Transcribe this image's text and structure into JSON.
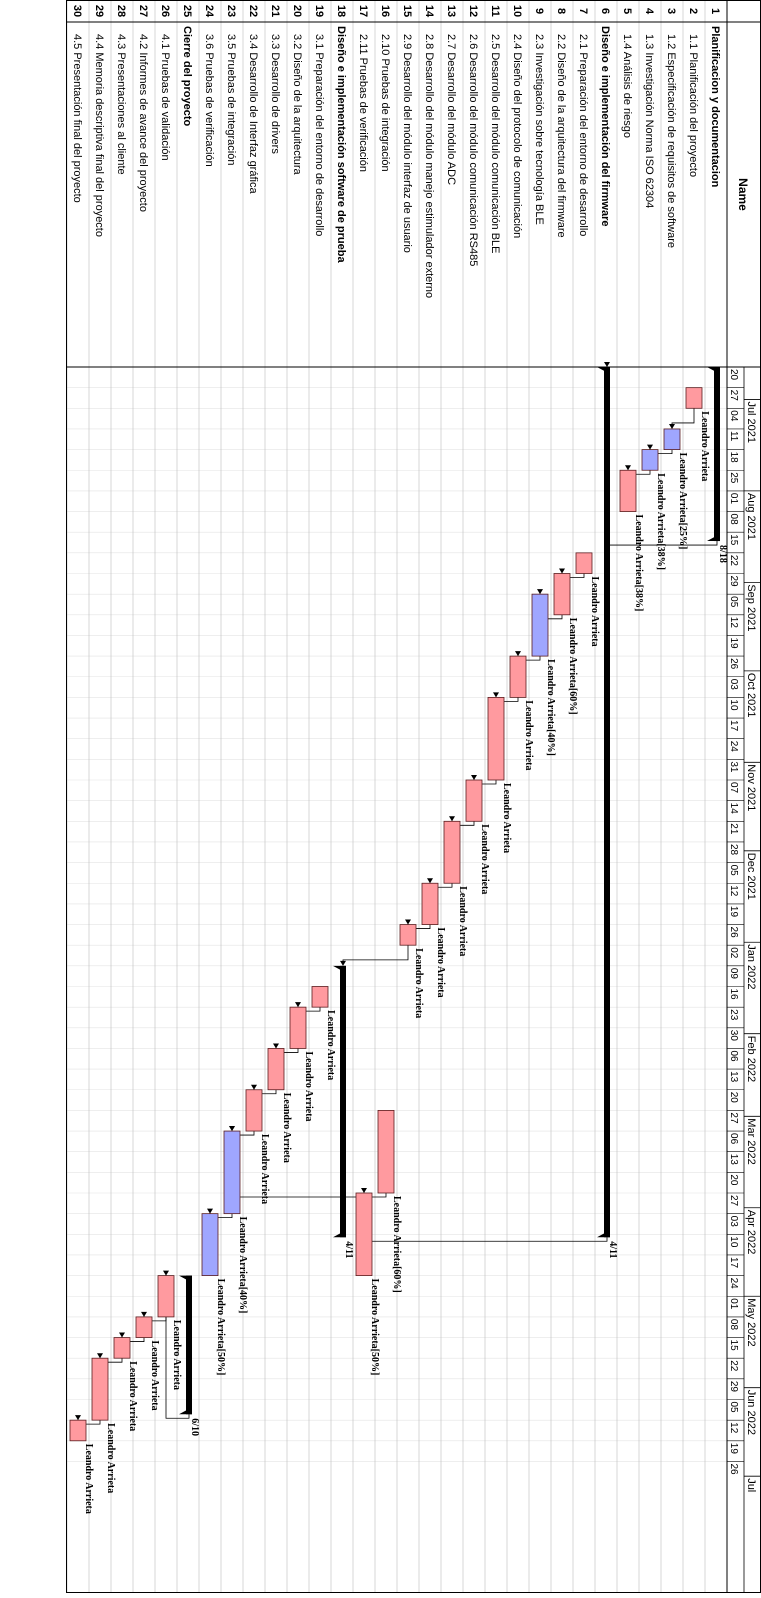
{
  "header": {
    "name_label": "Name"
  },
  "colors": {
    "bar_red": "#ff9a9f",
    "bar_blue": "#9fa6ff",
    "summary": "#000000",
    "grid": "#bdbdbd",
    "border": "#000000"
  },
  "timeline": {
    "start": "2021-06-20",
    "end": "2022-07-31",
    "months": [
      {
        "label": "Jul 2021",
        "date": "2021-07-01"
      },
      {
        "label": "Aug 2021",
        "date": "2021-08-01"
      },
      {
        "label": "Sep 2021",
        "date": "2021-09-01"
      },
      {
        "label": "Oct 2021",
        "date": "2021-10-01"
      },
      {
        "label": "Nov 2021",
        "date": "2021-11-01"
      },
      {
        "label": "Dec 2021",
        "date": "2021-12-01"
      },
      {
        "label": "Jan 2022",
        "date": "2022-01-01"
      },
      {
        "label": "Feb 2022",
        "date": "2022-02-01"
      },
      {
        "label": "Mar 2022",
        "date": "2022-03-01"
      },
      {
        "label": "Apr 2022",
        "date": "2022-04-01"
      },
      {
        "label": "May 2022",
        "date": "2022-05-01"
      },
      {
        "label": "Jun 2022",
        "date": "2022-06-01"
      },
      {
        "label": "Jul",
        "date": "2022-07-01"
      }
    ],
    "weeks": [
      "2021-06-20",
      "2021-06-27",
      "2021-07-04",
      "2021-07-11",
      "2021-07-18",
      "2021-07-25",
      "2021-08-01",
      "2021-08-08",
      "2021-08-15",
      "2021-08-22",
      "2021-08-29",
      "2021-09-05",
      "2021-09-12",
      "2021-09-19",
      "2021-09-26",
      "2021-10-03",
      "2021-10-10",
      "2021-10-17",
      "2021-10-24",
      "2021-10-31",
      "2021-11-07",
      "2021-11-14",
      "2021-11-21",
      "2021-11-28",
      "2021-12-05",
      "2021-12-12",
      "2021-12-19",
      "2021-12-26",
      "2022-01-02",
      "2022-01-09",
      "2022-01-16",
      "2022-01-23",
      "2022-01-30",
      "2022-02-06",
      "2022-02-13",
      "2022-02-20",
      "2022-02-27",
      "2022-03-06",
      "2022-03-13",
      "2022-03-20",
      "2022-03-27",
      "2022-04-03",
      "2022-04-10",
      "2022-04-17",
      "2022-04-24",
      "2022-05-01",
      "2022-05-08",
      "2022-05-15",
      "2022-05-22",
      "2022-05-29",
      "2022-06-05",
      "2022-06-12",
      "2022-06-19",
      "2022-06-26"
    ],
    "week_labels": [
      "20",
      "27",
      "04",
      "11",
      "18",
      "25",
      "01",
      "08",
      "15",
      "22",
      "29",
      "05",
      "12",
      "19",
      "26",
      "03",
      "10",
      "17",
      "24",
      "31",
      "07",
      "14",
      "21",
      "28",
      "05",
      "12",
      "19",
      "26",
      "02",
      "09",
      "16",
      "23",
      "30",
      "06",
      "13",
      "20",
      "27",
      "06",
      "13",
      "20",
      "27",
      "03",
      "10",
      "17",
      "24",
      "01",
      "08",
      "15",
      "22",
      "29",
      "05",
      "12",
      "19",
      "26"
    ]
  },
  "chart_data": {
    "type": "gantt",
    "tasks": [
      {
        "id": "1",
        "name": "Planificacion y documentacion",
        "summary": true,
        "start": "2021-06-20",
        "end": "2021-08-18",
        "label": "8/18"
      },
      {
        "id": "2",
        "name": "1.1 Planificación del proyecto",
        "start": "2021-06-27",
        "end": "2021-07-04",
        "color": "red",
        "label": "Leandro Arrieta"
      },
      {
        "id": "3",
        "name": "1.2 Especificación de requisitos de software",
        "start": "2021-07-11",
        "end": "2021-07-18",
        "color": "blue",
        "label": "Leandro Arrieta[25%]"
      },
      {
        "id": "4",
        "name": "1.3 Investigación Norma ISO 62304",
        "start": "2021-07-18",
        "end": "2021-07-25",
        "color": "blue",
        "label": "Leandro Arrieta[38%]"
      },
      {
        "id": "5",
        "name": "1.4 Análisis de riesgo",
        "start": "2021-07-25",
        "end": "2021-08-08",
        "color": "red",
        "label": "Leandro Arrieta[38%]"
      },
      {
        "id": "6",
        "name": "Diseño e implementación del firmware",
        "summary": true,
        "start": "2021-06-20",
        "end": "2022-04-11",
        "label": "4/11"
      },
      {
        "id": "7",
        "name": "2.1 Preparación del entorno de desarrollo",
        "start": "2021-08-22",
        "end": "2021-08-29",
        "color": "red",
        "label": "Leandro Arrieta"
      },
      {
        "id": "8",
        "name": "2.2 Diseño de la arquitectura del firmware",
        "start": "2021-08-29",
        "end": "2021-09-12",
        "color": "red",
        "label": "Leandro Arrieta[60%]"
      },
      {
        "id": "9",
        "name": "2.3 Investigación sobre tecnología BLE",
        "start": "2021-09-05",
        "end": "2021-09-26",
        "color": "blue",
        "label": "Leandro Arrieta[40%]"
      },
      {
        "id": "10",
        "name": "2.4 Diseño del protocolo de comunicación",
        "start": "2021-09-26",
        "end": "2021-10-10",
        "color": "red",
        "label": "Leandro Arrieta"
      },
      {
        "id": "11",
        "name": "2.5 Desarrollo del módulo comunicación BLE",
        "start": "2021-10-10",
        "end": "2021-11-07",
        "color": "red",
        "label": "Leandro Arrieta"
      },
      {
        "id": "12",
        "name": "2.6 Desarrollo del módulo comunicación RS485",
        "start": "2021-11-07",
        "end": "2021-11-21",
        "color": "red",
        "label": "Leandro Arrieta"
      },
      {
        "id": "13",
        "name": "2.7 Desarrollo del módulo ADC",
        "start": "2021-11-21",
        "end": "2021-12-12",
        "color": "red",
        "label": "Leandro Arrieta"
      },
      {
        "id": "14",
        "name": "2.8 Desarrollo del módulo manejo estimulador externo",
        "start": "2021-12-12",
        "end": "2021-12-26",
        "color": "red",
        "label": "Leandro Arrieta"
      },
      {
        "id": "15",
        "name": "2.9 Desarrollo del módulo interfaz de usuario",
        "start": "2021-12-26",
        "end": "2022-01-02",
        "color": "red",
        "label": "Leandro Arrieta"
      },
      {
        "id": "16",
        "name": "2.10 Pruebas de integración",
        "start": "2022-02-27",
        "end": "2022-03-27",
        "color": "red",
        "label": "Leandro Arrieta[60%]"
      },
      {
        "id": "17",
        "name": "2.11 Pruebas de verificación",
        "start": "2022-03-27",
        "end": "2022-04-24",
        "color": "red",
        "label": "Leandro Arrieta[50%]"
      },
      {
        "id": "18",
        "name": "Diseño e implementación software de prueba",
        "summary": true,
        "start": "2022-01-09",
        "end": "2022-04-11",
        "label": "4/11"
      },
      {
        "id": "19",
        "name": "3.1 Preparación del entorno de desarrollo",
        "start": "2022-01-16",
        "end": "2022-01-23",
        "color": "red",
        "label": "Leandro Arrieta"
      },
      {
        "id": "20",
        "name": "3.2 Diseño de la arquitectura",
        "start": "2022-01-23",
        "end": "2022-02-06",
        "color": "red",
        "label": "Leandro Arrieta"
      },
      {
        "id": "21",
        "name": "3.3 Desarrollo de drivers",
        "start": "2022-02-06",
        "end": "2022-02-20",
        "color": "red",
        "label": "Leandro Arrieta"
      },
      {
        "id": "22",
        "name": "3.4 Desarrollo de Interfaz gráfica",
        "start": "2022-02-20",
        "end": "2022-03-06",
        "color": "red",
        "label": "Leandro Arrieta"
      },
      {
        "id": "23",
        "name": "3.5 Pruebas de integración",
        "start": "2022-03-06",
        "end": "2022-04-03",
        "color": "blue",
        "label": "Leandro Arrieta[40%]"
      },
      {
        "id": "24",
        "name": "3.6 Pruebas de verificación",
        "start": "2022-04-03",
        "end": "2022-04-24",
        "color": "blue",
        "label": "Leandro Arrieta[50%]"
      },
      {
        "id": "25",
        "name": "Cierre del proyecto",
        "summary": true,
        "start": "2022-04-24",
        "end": "2022-06-10",
        "label": "6/10"
      },
      {
        "id": "26",
        "name": "4.1 Pruebas de validación",
        "start": "2022-04-24",
        "end": "2022-05-08",
        "color": "red",
        "label": "Leandro Arrieta"
      },
      {
        "id": "27",
        "name": "4.2 Informes de avance del proyecto",
        "start": "2022-05-08",
        "end": "2022-05-15",
        "color": "red",
        "label": "Leandro Arrieta"
      },
      {
        "id": "28",
        "name": "4.3 Presentaciones al cliente",
        "start": "2022-05-15",
        "end": "2022-05-22",
        "color": "red",
        "label": "Leandro Arrieta"
      },
      {
        "id": "29",
        "name": "4.4 Memoria descriptiva final del proyecto",
        "start": "2022-05-22",
        "end": "2022-06-12",
        "color": "red",
        "label": "Leandro Arrieta"
      },
      {
        "id": "30",
        "name": "4.5 Presentación final del proyecto",
        "start": "2022-06-12",
        "end": "2022-06-19",
        "color": "red",
        "label": "Leandro Arrieta"
      }
    ]
  }
}
